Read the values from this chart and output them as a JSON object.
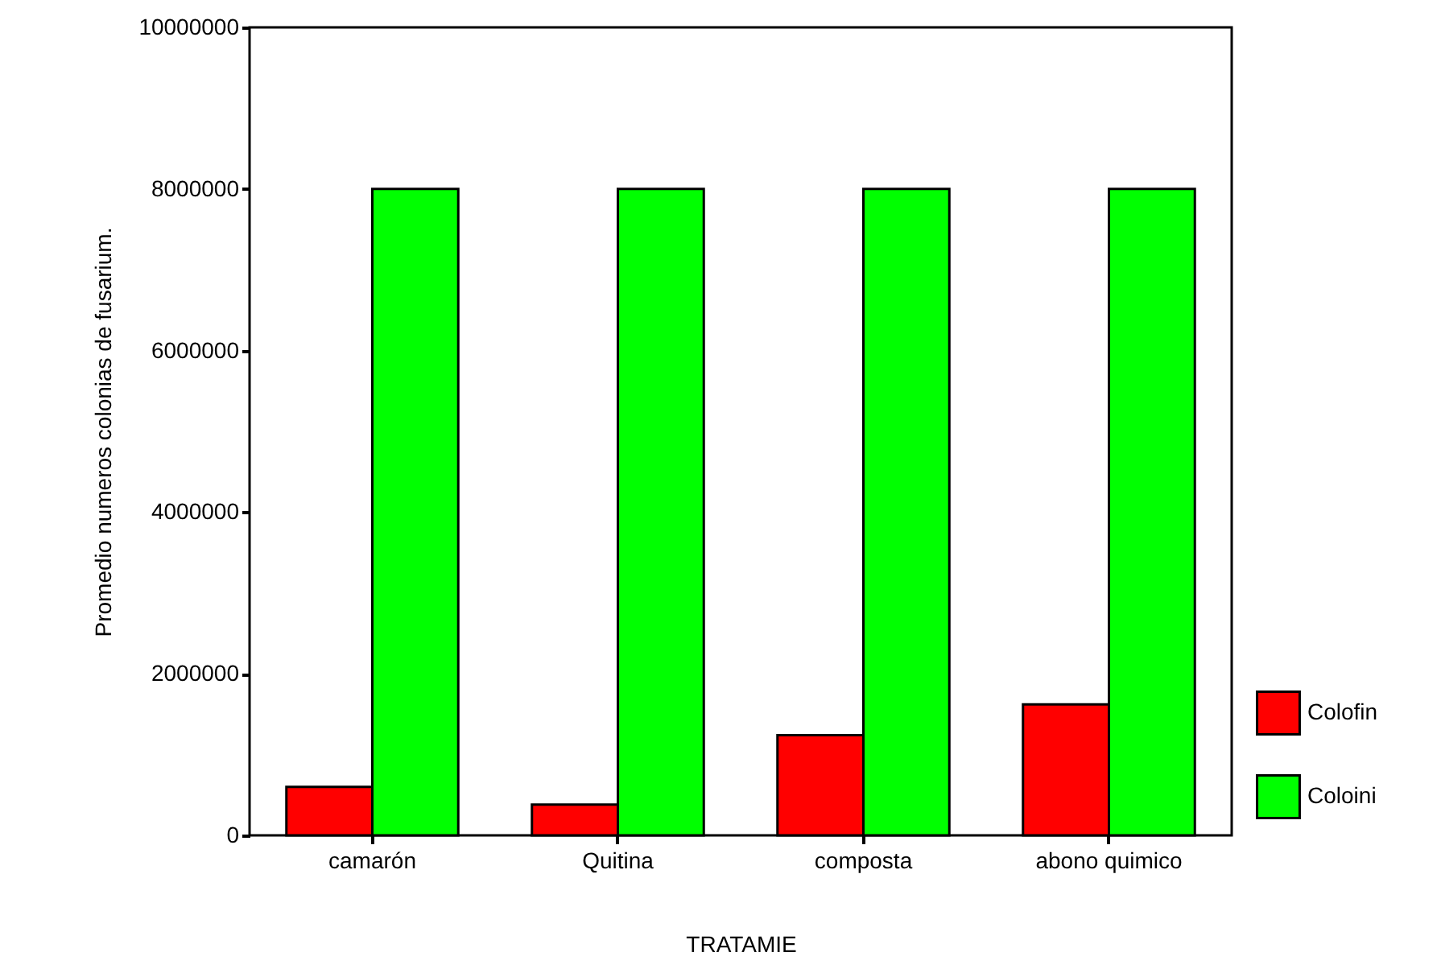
{
  "chart_data": {
    "type": "bar",
    "xlabel": "TRATAMIE",
    "ylabel": "Promedio numeros colonias de fusarium.",
    "categories": [
      "camarón",
      "Quitina",
      "composta",
      "abono quimico"
    ],
    "series": [
      {
        "name": "Colofin",
        "color": "#ff0000",
        "values": [
          600000,
          380000,
          1240000,
          1620000
        ]
      },
      {
        "name": "Coloini",
        "color": "#00ff00",
        "values": [
          8000000,
          8000000,
          8000000,
          8000000
        ]
      }
    ],
    "ylim": [
      0,
      10000000
    ],
    "yticks": [
      0,
      2000000,
      4000000,
      6000000,
      8000000,
      10000000
    ],
    "grid": false,
    "legend": "right"
  }
}
